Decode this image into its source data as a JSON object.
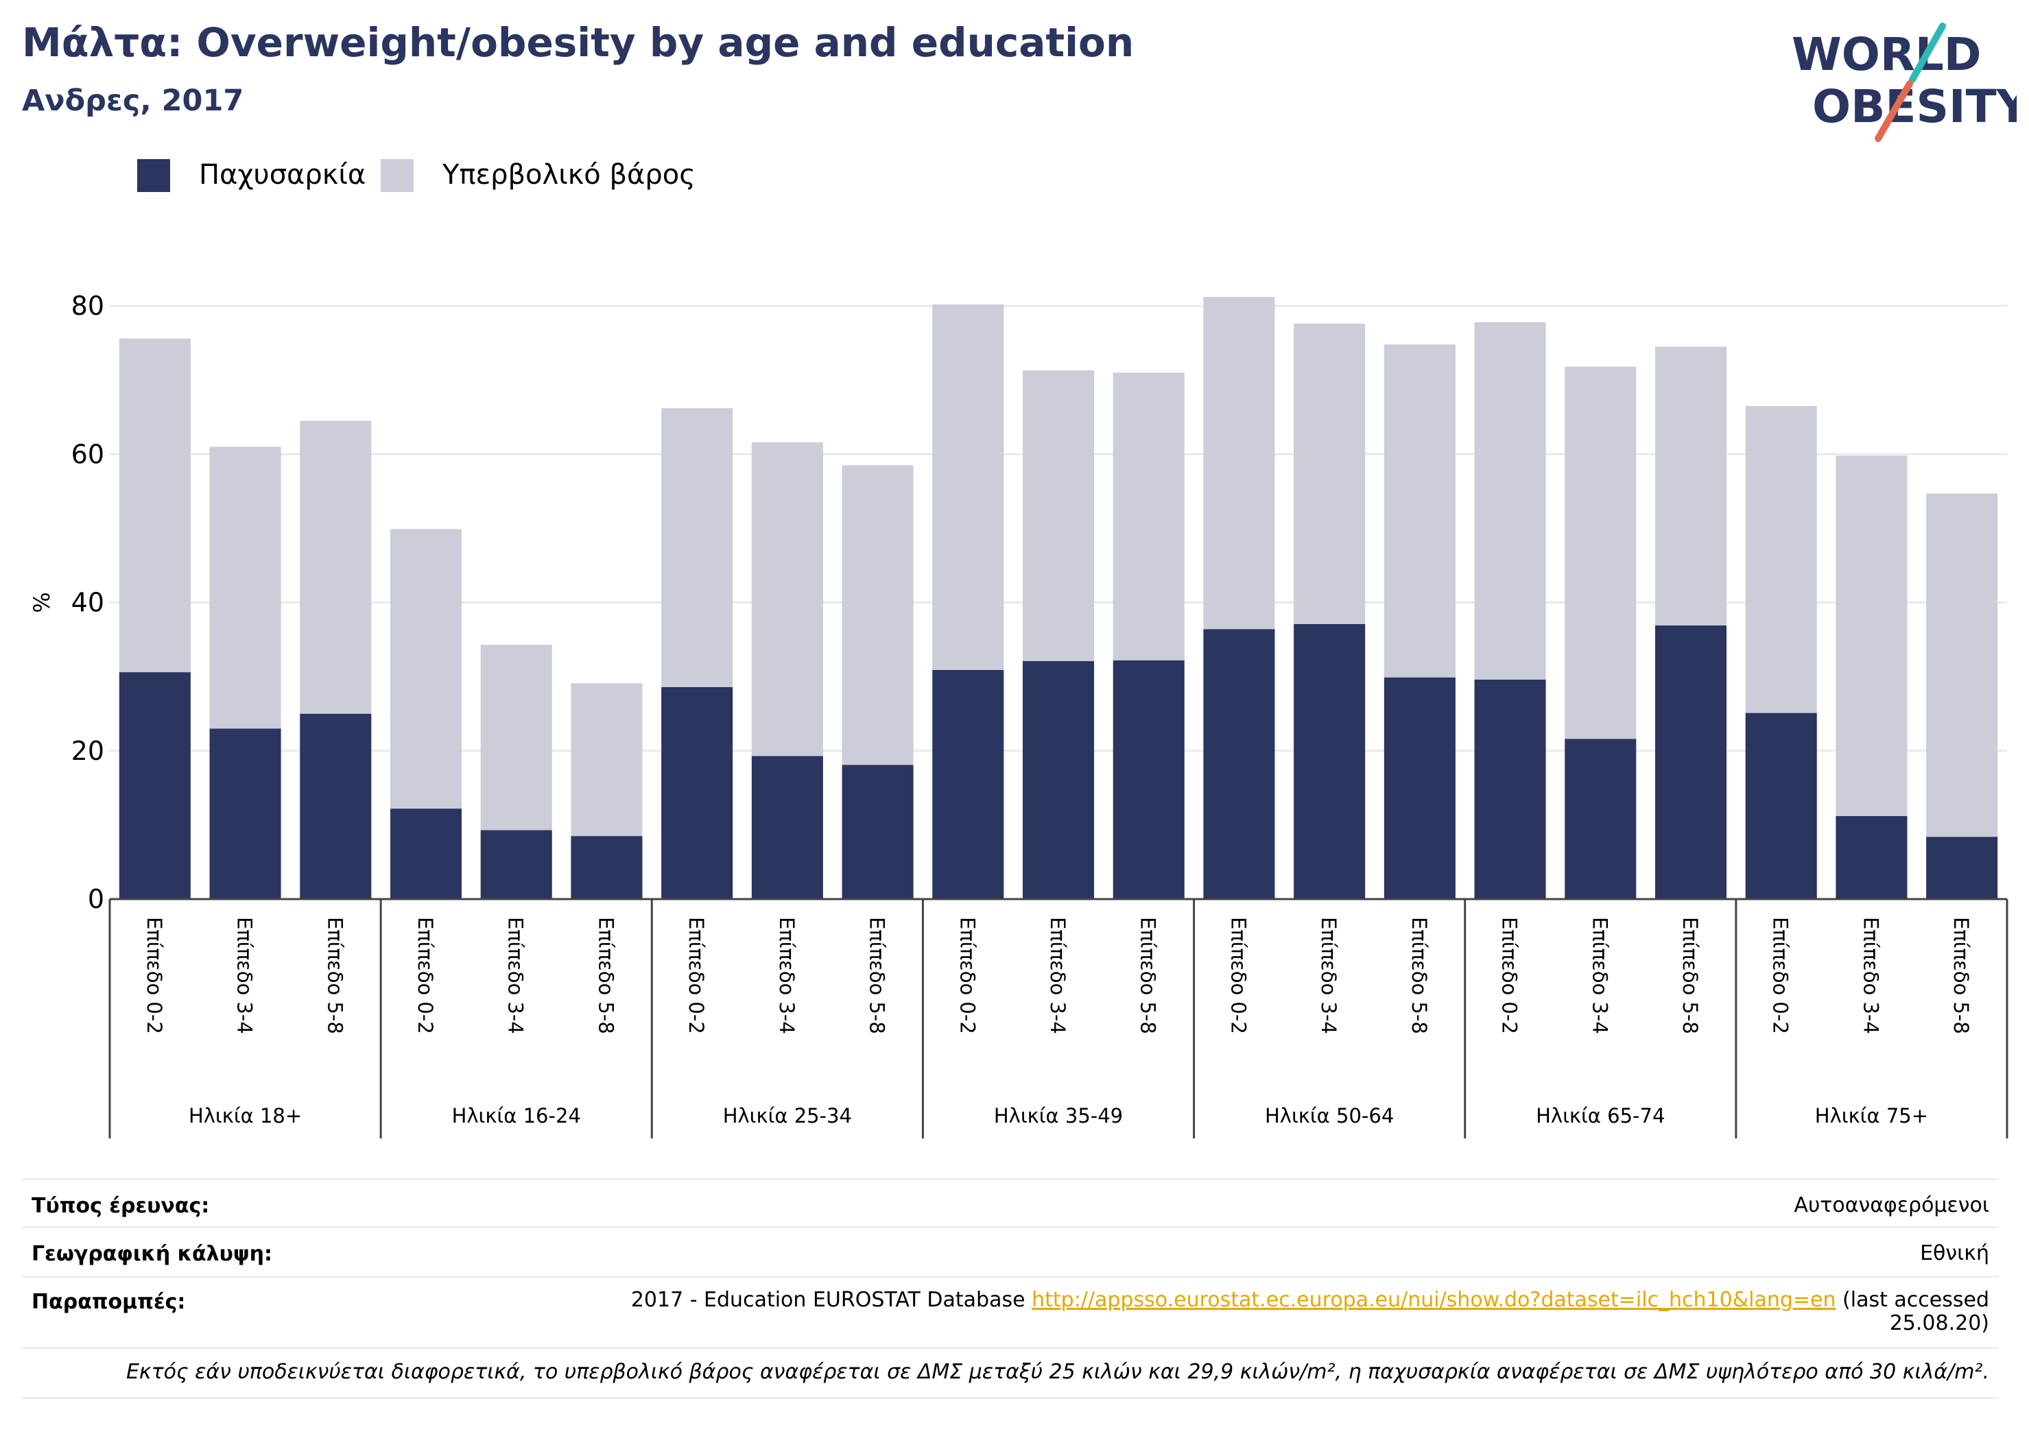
{
  "header": {
    "title": "Μάλτα: Overweight/obesity by age and education",
    "subtitle": "Ανδρες, 2017"
  },
  "logo": {
    "line1": "WORLD",
    "line2": "OBESITY"
  },
  "legend": {
    "items": [
      {
        "label": "Παχυσαρκία",
        "color": "#2a3560"
      },
      {
        "label": "Υπερβολικό βάρος",
        "color": "#cbcdd8"
      }
    ]
  },
  "chart_data": {
    "type": "bar",
    "stacked": true,
    "ylabel": "%",
    "ylim": [
      0,
      80
    ],
    "yticks": [
      0,
      20,
      40,
      60,
      80
    ],
    "grid": true,
    "legend_position": "top-left",
    "groups": [
      "Ηλικία 18+",
      "Ηλικία 16-24",
      "Ηλικία 25-34",
      "Ηλικία 35-49",
      "Ηλικία 50-64",
      "Ηλικία 65-74",
      "Ηλικία 75+"
    ],
    "subcategories": [
      "Επίπεδο 0-2",
      "Επίπεδο 3-4",
      "Επίπεδο 5-8"
    ],
    "series": [
      {
        "name": "Παχυσαρκία",
        "color": "#2a3560",
        "values": [
          30.6,
          23.0,
          25.0,
          12.2,
          9.3,
          8.5,
          28.6,
          19.3,
          18.1,
          30.9,
          32.1,
          32.2,
          36.4,
          37.1,
          29.9,
          29.6,
          21.6,
          36.9,
          25.1,
          11.2,
          8.4
        ]
      },
      {
        "name": "Υπερβολικό βάρος",
        "color": "#cbcdd8",
        "values": [
          45.0,
          38.0,
          39.5,
          37.7,
          25.0,
          20.6,
          37.6,
          42.3,
          40.4,
          49.3,
          39.2,
          38.8,
          44.8,
          40.5,
          44.9,
          48.2,
          50.2,
          37.6,
          41.4,
          48.6,
          46.3
        ]
      }
    ]
  },
  "info": {
    "survey_type_label": "Τύπος έρευνας:",
    "survey_type_value": "Αυτοαναφερόμενοι",
    "coverage_label": "Γεωγραφική κάλυψη:",
    "coverage_value": "Εθνική",
    "references_label": "Παραπομπές:",
    "references_prefix": "2017 - Education EUROSTAT Database ",
    "references_link": "http://appsso.eurostat.ec.europa.eu/nui/show.do?dataset=ilc_hch10&lang=en",
    "references_suffix_1": " (last accessed",
    "references_suffix_2": "25.08.20)",
    "footnote": "Εκτός εάν υποδεικνύεται διαφορετικά, το υπερβολικό βάρος αναφέρεται σε ΔΜΣ μεταξύ 25 κιλών και 29,9 κιλών/m², η παχυσαρκία αναφέρεται σε ΔΜΣ υψηλότερο από 30 κιλά/m²."
  }
}
